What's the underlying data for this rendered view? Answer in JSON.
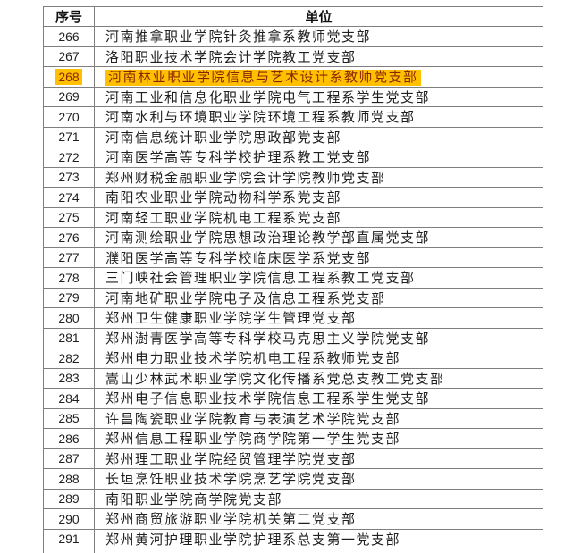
{
  "colors": {
    "highlight_bg": "#FFC000",
    "highlight_text": "#8B2500",
    "border": "#7f7f7f",
    "text": "#1f1f1f"
  },
  "table": {
    "headers": [
      "序号",
      "单位"
    ],
    "rows": [
      {
        "no": "266",
        "unit": "河南推拿职业学院针灸推拿系教师党支部",
        "highlighted": false
      },
      {
        "no": "267",
        "unit": "洛阳职业技术学院会计学院教工党支部",
        "highlighted": false
      },
      {
        "no": "268",
        "unit": "河南林业职业学院信息与艺术设计系教师党支部",
        "highlighted": true
      },
      {
        "no": "269",
        "unit": "河南工业和信息化职业学院电气工程系学生党支部",
        "highlighted": false
      },
      {
        "no": "270",
        "unit": "河南水利与环境职业学院环境工程系教师党支部",
        "highlighted": false
      },
      {
        "no": "271",
        "unit": "河南信息统计职业学院思政部党支部",
        "highlighted": false
      },
      {
        "no": "272",
        "unit": "河南医学高等专科学校护理系教工党支部",
        "highlighted": false
      },
      {
        "no": "273",
        "unit": "郑州财税金融职业学院会计学院教师党支部",
        "highlighted": false
      },
      {
        "no": "274",
        "unit": "南阳农业职业学院动物科学系党支部",
        "highlighted": false
      },
      {
        "no": "275",
        "unit": "河南轻工职业学院机电工程系党支部",
        "highlighted": false
      },
      {
        "no": "276",
        "unit": "河南测绘职业学院思想政治理论教学部直属党支部",
        "highlighted": false
      },
      {
        "no": "277",
        "unit": "濮阳医学高等专科学校临床医学系党支部",
        "highlighted": false
      },
      {
        "no": "278",
        "unit": "三门峡社会管理职业学院信息工程系教工党支部",
        "highlighted": false
      },
      {
        "no": "279",
        "unit": "河南地矿职业学院电子及信息工程系党支部",
        "highlighted": false
      },
      {
        "no": "280",
        "unit": "郑州卫生健康职业学院学生管理党支部",
        "highlighted": false
      },
      {
        "no": "281",
        "unit": "郑州澍青医学高等专科学校马克思主义学院党支部",
        "highlighted": false
      },
      {
        "no": "282",
        "unit": "郑州电力职业技术学院机电工程系教师党支部",
        "highlighted": false
      },
      {
        "no": "283",
        "unit": "嵩山少林武术职业学院文化传播系党总支教工党支部",
        "highlighted": false
      },
      {
        "no": "284",
        "unit": "郑州电子信息职业技术学院信息工程系学生党支部",
        "highlighted": false
      },
      {
        "no": "285",
        "unit": "许昌陶瓷职业学院教育与表演艺术学院党支部",
        "highlighted": false
      },
      {
        "no": "286",
        "unit": "郑州信息工程职业学院商学院第一学生党支部",
        "highlighted": false
      },
      {
        "no": "287",
        "unit": "郑州理工职业学院经贸管理学院党支部",
        "highlighted": false
      },
      {
        "no": "288",
        "unit": "长垣烹饪职业技术学院烹艺学院党支部",
        "highlighted": false
      },
      {
        "no": "289",
        "unit": "南阳职业学院商学院党支部",
        "highlighted": false
      },
      {
        "no": "290",
        "unit": "郑州商贸旅游职业学院机关第二党支部",
        "highlighted": false
      },
      {
        "no": "291",
        "unit": "郑州黄河护理职业学院护理系总支第一党支部",
        "highlighted": false
      }
    ]
  }
}
